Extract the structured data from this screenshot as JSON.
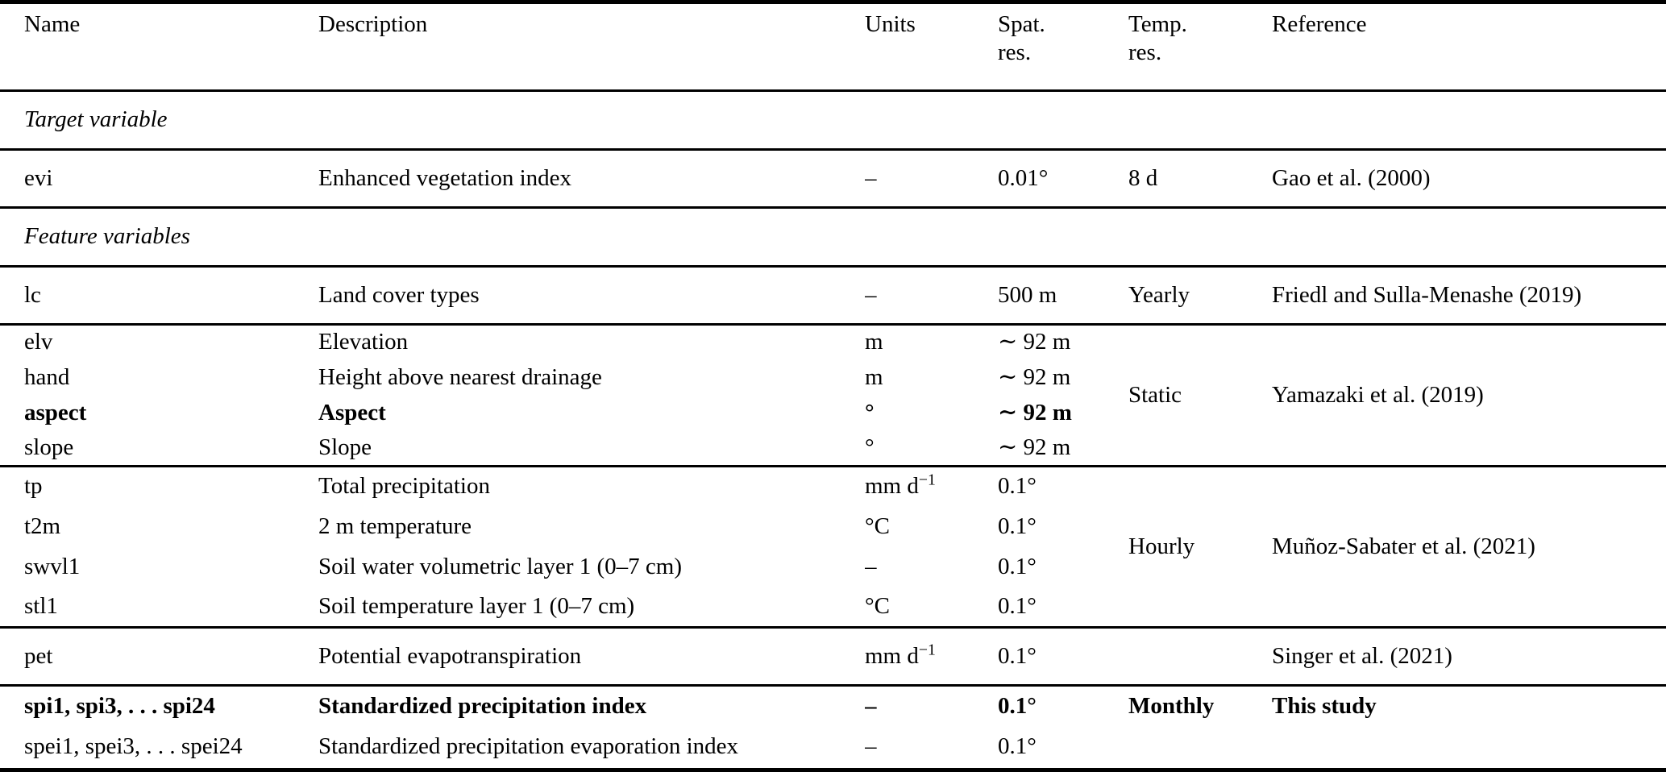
{
  "page": {
    "background": "#ffffff",
    "text_color": "#000000",
    "rule_color": "#000000"
  },
  "header": {
    "name": "Name",
    "description": "Description",
    "units": "Units",
    "spat_line1": "Spat.",
    "spat_line2": "res.",
    "temp_line1": "Temp.",
    "temp_line2": "res.",
    "reference": "Reference"
  },
  "sections": {
    "target": "Target variable",
    "feature": "Feature variables"
  },
  "rows": {
    "evi": {
      "name": "evi",
      "description": "Enhanced vegetation index",
      "units": "–",
      "spat": "0.01°",
      "temp": "8 d",
      "reference": "Gao et al. (2000)"
    },
    "lc": {
      "name": "lc",
      "description": "Land cover types",
      "units": "–",
      "spat": "500 m",
      "temp": "Yearly",
      "reference": "Friedl and Sulla-Menashe (2019)"
    },
    "elv": {
      "name": "elv",
      "description": "Elevation",
      "units": "m",
      "spat": "∼ 92 m"
    },
    "hand": {
      "name": "hand",
      "description": "Height above nearest drainage",
      "units": "m",
      "spat": "∼ 92 m"
    },
    "aspect": {
      "name": "aspect",
      "description": "Aspect",
      "units": "°",
      "spat": "∼ 92 m"
    },
    "slope": {
      "name": "slope",
      "description": "Slope",
      "units": "°",
      "spat": "∼ 92 m"
    },
    "static_group": {
      "temp": "Static",
      "reference": "Yamazaki et al. (2019)"
    },
    "tp": {
      "name": "tp",
      "description": "Total precipitation",
      "units_base": "mm d",
      "units_sup": "−1",
      "spat": "0.1°"
    },
    "t2m": {
      "name": "t2m",
      "description": "2 m temperature",
      "units": "°C",
      "spat": "0.1°"
    },
    "swvl1": {
      "name": "swvl1",
      "description": "Soil water volumetric layer 1 (0–7 cm)",
      "units": "–",
      "spat": "0.1°"
    },
    "stl1": {
      "name": "stl1",
      "description": "Soil temperature layer 1 (0–7 cm)",
      "units": "°C",
      "spat": "0.1°"
    },
    "hourly_group": {
      "temp": "Hourly",
      "reference": "Muñoz-Sabater et al. (2021)"
    },
    "pet": {
      "name": "pet",
      "description": "Potential evapotranspiration",
      "units_base": "mm d",
      "units_sup": "−1",
      "spat": "0.1°",
      "temp": "",
      "reference": "Singer et al. (2021)"
    },
    "spi": {
      "name": "spi1, spi3, . . . spi24",
      "description": "Standardized precipitation index",
      "units": "–",
      "spat": "0.1°",
      "temp": "Monthly",
      "reference": "This study"
    },
    "spei": {
      "name": "spei1, spei3, . . . spei24",
      "description": "Standardized precipitation evaporation index",
      "units": "–",
      "spat": "0.1°",
      "temp": "",
      "reference": ""
    }
  }
}
